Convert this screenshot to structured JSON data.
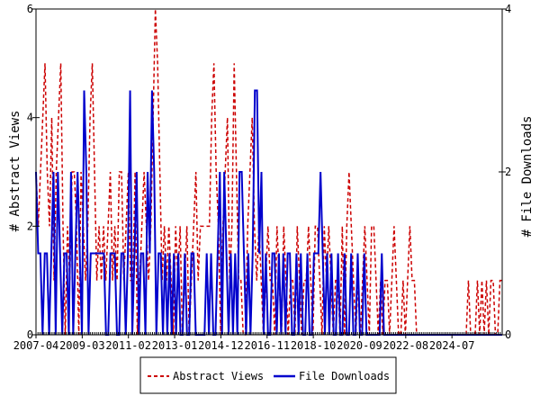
{
  "chart_data": {
    "type": "line",
    "title": "",
    "xlabel": "",
    "ylabel": "# Abstract Views",
    "y2label": "# File Downloads",
    "ylim": [
      0,
      6
    ],
    "y2lim": [
      0,
      4
    ],
    "yticks": [
      "0",
      "2",
      "4",
      "6"
    ],
    "y2ticks": [
      "0",
      "2",
      "4"
    ],
    "xlim": [
      "2007-04",
      "2026-08"
    ],
    "xticks": [
      "2007-04",
      "2009-03",
      "2011-02",
      "2013-01",
      "2014-12",
      "2016-11",
      "2018-10",
      "2020-09",
      "2022-08",
      "2024-07"
    ],
    "grid": false,
    "legend_position": "bottom",
    "series": [
      {
        "name": "Abstract Views",
        "axis": "left",
        "color": "#cc0000",
        "dash": "dashed",
        "values": [
          3,
          2,
          3,
          4,
          5,
          3,
          2,
          4,
          1,
          3,
          4,
          5,
          2,
          0,
          2,
          1,
          3,
          3,
          2,
          0,
          3,
          2,
          1,
          2,
          4,
          5,
          3,
          1,
          2,
          1,
          2,
          1,
          2,
          3,
          1,
          2,
          1,
          3,
          3,
          1,
          2,
          3,
          1,
          1,
          3,
          0,
          1,
          2,
          3,
          2,
          1,
          2,
          4,
          6,
          5,
          3,
          1,
          2,
          1,
          2,
          1,
          0,
          2,
          1,
          2,
          0,
          1,
          2,
          0,
          1,
          2,
          3,
          1,
          2,
          2,
          2,
          2,
          2,
          4,
          5,
          3,
          2,
          0,
          2,
          3,
          4,
          1,
          2,
          5,
          3,
          1,
          1,
          0,
          0,
          2,
          3,
          4,
          2,
          1,
          2,
          1,
          0,
          1,
          2,
          1,
          1,
          0,
          2,
          1,
          0,
          2,
          1,
          0,
          1,
          1,
          0,
          2,
          1,
          0,
          1,
          1,
          2,
          1,
          0,
          2,
          2,
          1,
          0,
          2,
          1,
          2,
          1,
          0,
          1,
          1,
          0,
          2,
          0,
          2,
          3,
          2,
          1,
          0,
          1,
          0,
          1,
          2,
          1,
          0,
          2,
          2,
          1,
          0,
          1,
          0,
          1,
          1,
          0,
          1,
          2,
          1,
          0,
          0,
          1,
          0,
          1,
          2,
          1,
          1,
          0,
          0,
          0,
          0,
          0,
          0,
          0,
          0,
          0,
          0,
          0,
          0,
          0,
          0,
          0,
          0,
          0,
          0,
          0,
          0,
          0,
          0,
          0,
          1,
          0,
          0,
          0,
          1,
          0,
          1,
          0,
          1,
          0,
          1,
          1,
          0,
          0,
          1,
          1
        ]
      },
      {
        "name": "File Downloads",
        "axis": "right",
        "color": "#0000cc",
        "dash": "solid",
        "values": [
          2,
          1,
          1,
          0,
          1,
          1,
          0,
          1,
          2,
          0,
          2,
          1,
          0,
          1,
          1,
          0,
          2,
          0,
          1,
          2,
          1,
          0,
          3,
          2,
          0,
          1,
          1,
          1,
          1,
          1,
          1,
          1,
          0,
          0,
          1,
          1,
          1,
          0,
          0,
          1,
          1,
          0,
          1,
          3,
          0,
          1,
          2,
          0,
          1,
          1,
          0,
          2,
          1,
          3,
          2,
          0,
          1,
          1,
          0,
          1,
          0,
          1,
          0,
          1,
          0,
          1,
          0,
          0,
          1,
          0,
          0,
          1,
          1,
          0,
          0,
          0,
          0,
          0,
          1,
          0,
          1,
          0,
          0,
          1,
          2,
          0,
          2,
          1,
          0,
          1,
          0,
          1,
          0,
          2,
          2,
          1,
          0,
          1,
          0,
          1,
          3,
          3,
          1,
          2,
          0,
          1,
          0,
          0,
          1,
          1,
          0,
          1,
          0,
          1,
          0,
          1,
          1,
          0,
          0,
          1,
          0,
          1,
          0,
          0,
          1,
          0,
          0,
          1,
          1,
          1,
          2,
          1,
          0,
          1,
          0,
          1,
          0,
          0,
          1,
          0,
          0,
          1,
          0,
          0,
          1,
          0,
          0,
          1,
          0,
          0,
          1,
          0,
          0,
          0,
          0,
          0,
          0,
          0,
          1,
          0,
          0,
          0,
          0,
          0,
          0,
          0,
          0,
          0,
          0,
          0,
          0,
          0,
          0,
          0,
          0,
          0,
          0,
          0,
          0,
          0,
          0,
          0,
          0,
          0,
          0,
          0,
          0,
          0,
          0,
          0,
          0,
          0,
          0,
          0,
          0,
          0,
          0,
          0,
          0,
          0,
          0,
          0,
          0,
          0,
          0,
          0,
          0,
          0,
          0,
          0,
          0,
          0,
          0,
          0
        ]
      }
    ]
  }
}
